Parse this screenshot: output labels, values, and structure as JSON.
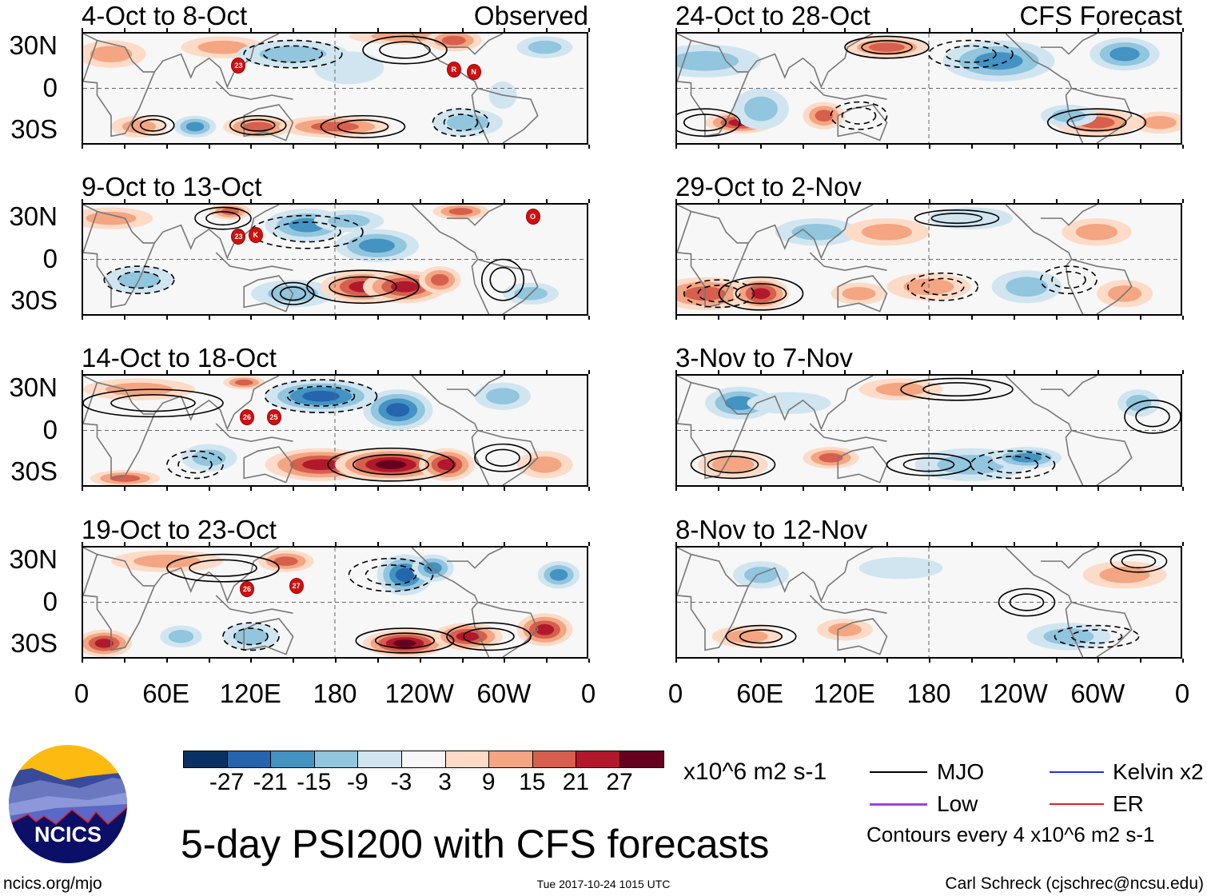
{
  "title": "5-day PSI200 with CFS forecasts",
  "units": "x10^6 m2 s-1",
  "timestamp": "Tue 2017-10-24 1015 UTC",
  "site": "ncics.org/mjo",
  "author": "Carl Schreck (cjschrec@ncsu.edu)",
  "logo_text": "NCICS",
  "contour_note": "Contours every 4 x10^6 m2 s-1",
  "legend": [
    {
      "label": "MJO",
      "color": "#000000"
    },
    {
      "label": "Kelvin x2",
      "color": "#1f2fe0"
    },
    {
      "label": "Low",
      "color": "#a040e0"
    },
    {
      "label": "ER",
      "color": "#e02020"
    }
  ],
  "colorbar": {
    "colors": [
      "#0a3163",
      "#2465ad",
      "#4393c3",
      "#92c5de",
      "#d1e5f0",
      "#f7f7f7",
      "#fddbc7",
      "#f4a582",
      "#d6604d",
      "#b2182b",
      "#67001f"
    ],
    "labels": [
      "-27",
      "-21",
      "-15",
      "-9",
      "-3",
      "3",
      "9",
      "15",
      "21",
      "27"
    ]
  },
  "chart_data": {
    "type": "heatmap",
    "variable": "PSI200",
    "lat_labels": [
      "30N",
      "0",
      "30S"
    ],
    "lon_labels": [
      "0",
      "60E",
      "120E",
      "180",
      "120W",
      "60W",
      "0"
    ],
    "columns": [
      {
        "header": "Observed",
        "panels": [
          {
            "title": "4-Oct to 8-Oct",
            "storms": [
              {
                "label": "23",
                "lon": 111,
                "lat": 17
              },
              {
                "label": "R",
                "lon": 264,
                "lat": 14
              },
              {
                "label": "N",
                "lon": 278,
                "lat": 12
              }
            ]
          },
          {
            "title": "9-Oct to 13-Oct",
            "storms": [
              {
                "label": "23",
                "lon": 111,
                "lat": 17
              },
              {
                "label": "K",
                "lon": 123,
                "lat": 18
              },
              {
                "label": "O",
                "lon": 320,
                "lat": 31
              }
            ]
          },
          {
            "title": "14-Oct to 18-Oct",
            "storms": [
              {
                "label": "26",
                "lon": 117,
                "lat": 10
              },
              {
                "label": "25",
                "lon": 136,
                "lat": 10
              }
            ]
          },
          {
            "title": "19-Oct to 23-Oct",
            "storms": [
              {
                "label": "26",
                "lon": 117,
                "lat": 10
              },
              {
                "label": "27",
                "lon": 152,
                "lat": 12
              }
            ]
          }
        ]
      },
      {
        "header": "CFS Forecast",
        "panels": [
          {
            "title": "24-Oct to 28-Oct",
            "storms": []
          },
          {
            "title": "29-Oct to 2-Nov",
            "storms": []
          },
          {
            "title": "3-Nov to 7-Nov",
            "storms": []
          },
          {
            "title": "8-Nov to 12-Nov",
            "storms": []
          }
        ]
      }
    ]
  }
}
